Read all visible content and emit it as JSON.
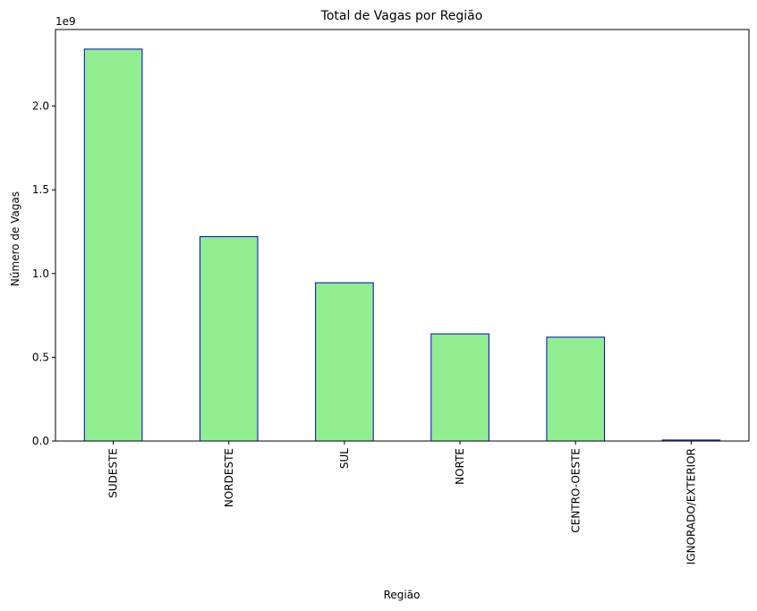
{
  "chart_data": {
    "type": "bar",
    "title": "Total de Vagas por Região",
    "xlabel": "Região",
    "ylabel": "Número de Vagas",
    "scale_label": "1e9",
    "categories": [
      "SUDESTE",
      "NORDESTE",
      "SUL",
      "NORTE",
      "CENTRO-OESTE",
      "IGNORADO/EXTERIOR"
    ],
    "values": [
      2.34,
      1.22,
      0.945,
      0.64,
      0.62,
      0.006
    ],
    "value_multiplier": 1000000000,
    "ylim": [
      0,
      2.457
    ],
    "yticks": [
      0.0,
      0.5,
      1.0,
      1.5,
      2.0
    ],
    "ytick_labels": [
      "0.0",
      "0.5",
      "1.0",
      "1.5",
      "2.0"
    ],
    "grid": false,
    "colors": {
      "bar_fill": "#90ee90",
      "bar_edge": "#0000cd"
    }
  }
}
